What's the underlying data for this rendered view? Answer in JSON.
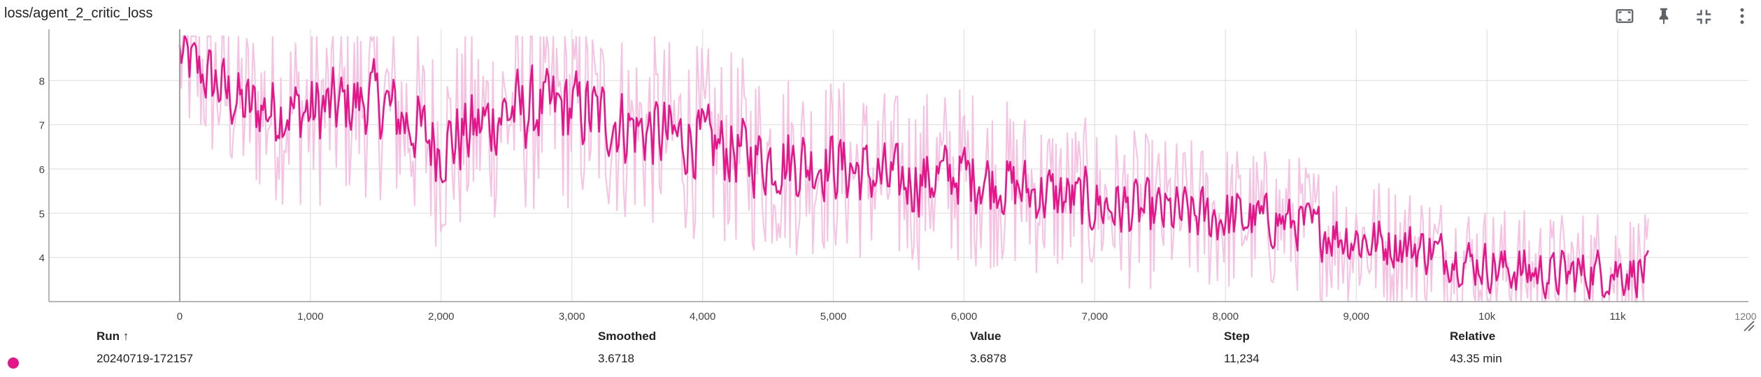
{
  "card": {
    "title": "loss/agent_2_critic_loss",
    "icons": [
      "fit-domain-icon",
      "pin-icon",
      "fullscreen-exit-icon",
      "more-vert-icon"
    ]
  },
  "colors": {
    "series": "#e6168a",
    "series_raw": "#f7c2e2",
    "grid": "#e0e0e0",
    "axis_text": "#424242",
    "zero_axis": "#9e9e9e"
  },
  "chart_data": {
    "type": "line",
    "title": "loss/agent_2_critic_loss",
    "xlabel": "",
    "ylabel": "",
    "xlim": [
      -1000,
      12000
    ],
    "ylim": [
      3,
      9
    ],
    "x_ticks": [
      0,
      1000,
      2000,
      3000,
      4000,
      5000,
      6000,
      7000,
      8000,
      9000,
      10000,
      11000
    ],
    "x_tick_labels": [
      "0",
      "1,000",
      "2,000",
      "3,000",
      "4,000",
      "5,000",
      "6,000",
      "7,000",
      "8,000",
      "9,000",
      "10k",
      "11k"
    ],
    "x_edge_label": "1200",
    "y_ticks": [
      4,
      5,
      6,
      7,
      8
    ],
    "y_tick_labels": [
      "4",
      "5",
      "6",
      "7",
      "8"
    ],
    "grid": true,
    "legend": "none",
    "series": [
      {
        "name": "20240719-172157",
        "x": [
          0,
          500,
          1000,
          1500,
          2000,
          2500,
          3000,
          3500,
          4000,
          4500,
          5000,
          5500,
          6000,
          6500,
          7000,
          7500,
          8000,
          8500,
          9000,
          9500,
          10000,
          10500,
          11000,
          11234
        ],
        "smoothed": [
          8.6,
          7.4,
          7.3,
          7.6,
          6.5,
          7.3,
          7.4,
          6.9,
          6.6,
          6.2,
          6.1,
          5.7,
          5.9,
          5.5,
          5.2,
          5.0,
          4.9,
          4.8,
          4.4,
          4.2,
          3.8,
          3.6,
          3.7,
          3.67
        ],
        "raw_spread": [
          1.2,
          1.3,
          1.4,
          1.4,
          1.5,
          1.5,
          1.5,
          1.4,
          1.4,
          1.4,
          1.3,
          1.3,
          1.3,
          1.2,
          1.2,
          1.1,
          1.1,
          1.0,
          1.0,
          0.9,
          0.9,
          0.9,
          1.0,
          0.8
        ]
      }
    ]
  },
  "table": {
    "headers": {
      "run": "Run ↑",
      "smoothed": "Smoothed",
      "value": "Value",
      "step": "Step",
      "relative": "Relative"
    },
    "rows": [
      {
        "run": "20240719-172157",
        "smoothed": "3.6718",
        "value": "3.6878",
        "step": "11,234",
        "relative": "43.35 min",
        "color": "#e6168a"
      }
    ]
  }
}
